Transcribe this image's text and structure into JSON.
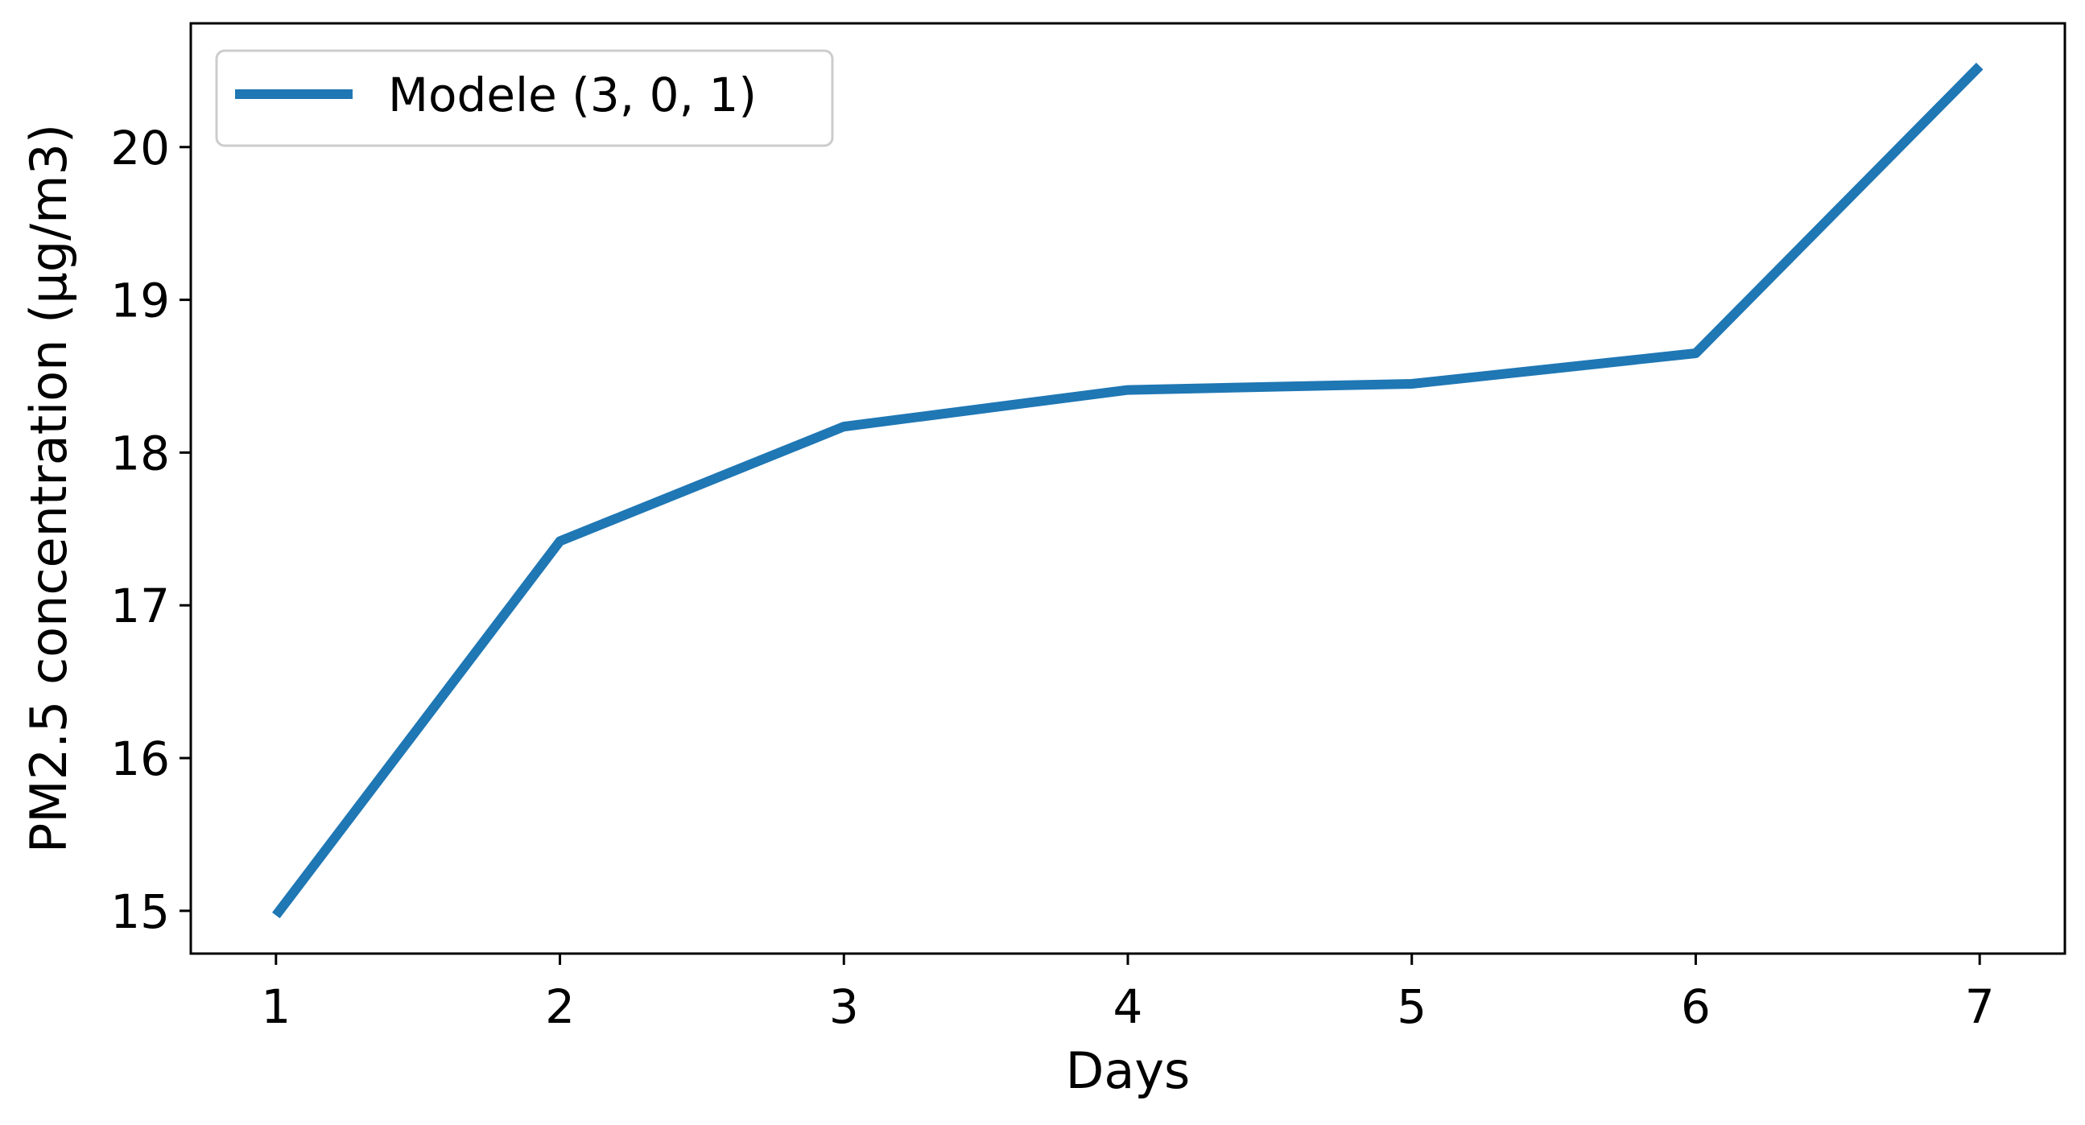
{
  "chart_data": {
    "type": "line",
    "title": "",
    "xlabel": "Days",
    "ylabel": "PM2.5 concentration (µg/m3)",
    "x": [
      1,
      2,
      3,
      4,
      5,
      6,
      7
    ],
    "xlim": [
      0.7,
      7.3
    ],
    "ylim": [
      14.72,
      20.81
    ],
    "xticks": [
      1,
      2,
      3,
      4,
      5,
      6,
      7
    ],
    "yticks": [
      15,
      16,
      17,
      18,
      19,
      20
    ],
    "grid": false,
    "legend_position": "top-left",
    "series": [
      {
        "name": "Modele (3, 0, 1)",
        "color": "#1f77b4",
        "values": [
          14.97,
          17.42,
          18.17,
          18.41,
          18.45,
          18.65,
          20.53
        ]
      }
    ]
  }
}
